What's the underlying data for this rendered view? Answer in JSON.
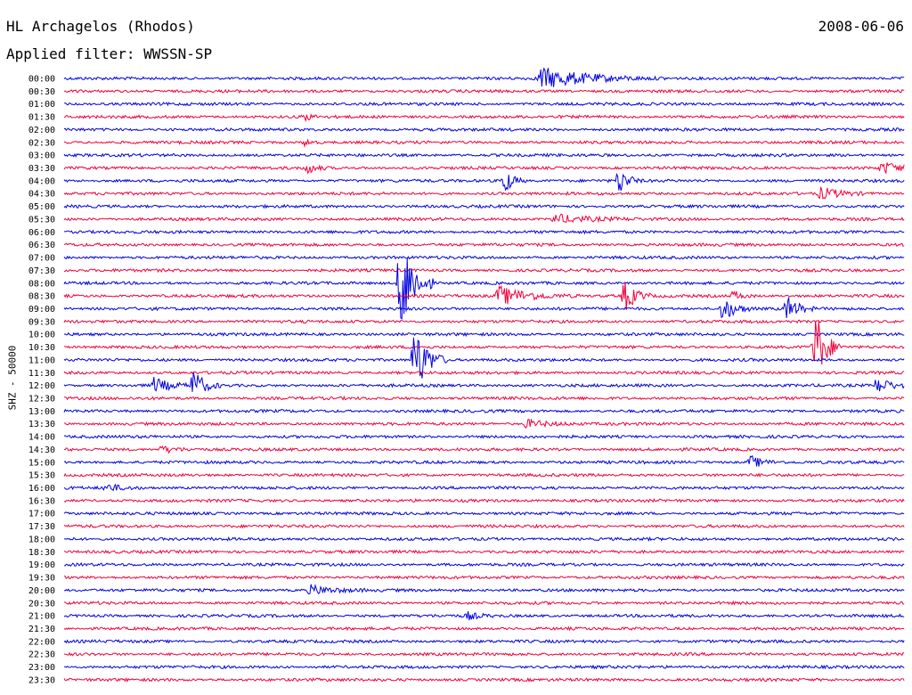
{
  "header": {
    "station": "HL Archagelos (Rhodos)",
    "date": "2008-06-06",
    "filter_line": "Applied filter: WWSSN-SP"
  },
  "chart_data": {
    "type": "line",
    "ylabel": "SHZ - 50000",
    "colors": [
      "#0000e0",
      "#f0003c"
    ],
    "row_labels": [
      "00:00",
      "00:30",
      "01:00",
      "01:30",
      "02:00",
      "02:30",
      "03:00",
      "03:30",
      "04:00",
      "04:30",
      "05:00",
      "05:30",
      "06:00",
      "06:30",
      "07:00",
      "07:30",
      "08:00",
      "08:30",
      "09:00",
      "09:30",
      "10:00",
      "10:30",
      "11:00",
      "11:30",
      "12:00",
      "12:30",
      "13:00",
      "13:30",
      "14:00",
      "14:30",
      "15:00",
      "15:30",
      "16:00",
      "16:30",
      "17:00",
      "17:30",
      "18:00",
      "18:30",
      "19:00",
      "19:30",
      "20:00",
      "20:30",
      "21:00",
      "21:30",
      "22:00",
      "22:30",
      "23:00",
      "23:30"
    ],
    "events": [
      {
        "row": 0,
        "minute": 17.0,
        "amplitude": 1.0,
        "duration": 4.5
      },
      {
        "row": 3,
        "minute": 8.6,
        "amplitude": 0.35,
        "duration": 0.6
      },
      {
        "row": 5,
        "minute": 8.6,
        "amplitude": 0.35,
        "duration": 0.6
      },
      {
        "row": 7,
        "minute": 8.7,
        "amplitude": 0.5,
        "duration": 0.8
      },
      {
        "row": 7,
        "minute": 29.2,
        "amplitude": 0.55,
        "duration": 2.0
      },
      {
        "row": 8,
        "minute": 15.7,
        "amplitude": 1.3,
        "duration": 0.8
      },
      {
        "row": 8,
        "minute": 19.8,
        "amplitude": 1.3,
        "duration": 0.8
      },
      {
        "row": 9,
        "minute": 27.0,
        "amplitude": 0.55,
        "duration": 2.0
      },
      {
        "row": 11,
        "minute": 17.5,
        "amplitude": 0.45,
        "duration": 3.0
      },
      {
        "row": 16,
        "minute": 12.0,
        "amplitude": 5.5,
        "duration": 1.2
      },
      {
        "row": 17,
        "minute": 15.5,
        "amplitude": 0.9,
        "duration": 3.0
      },
      {
        "row": 17,
        "minute": 20.0,
        "amplitude": 1.5,
        "duration": 1.0
      },
      {
        "row": 17,
        "minute": 23.9,
        "amplitude": 0.5,
        "duration": 0.8
      },
      {
        "row": 18,
        "minute": 23.5,
        "amplitude": 1.2,
        "duration": 1.2
      },
      {
        "row": 18,
        "minute": 25.8,
        "amplitude": 1.2,
        "duration": 1.0
      },
      {
        "row": 21,
        "minute": 26.8,
        "amplitude": 3.5,
        "duration": 1.0
      },
      {
        "row": 22,
        "minute": 12.5,
        "amplitude": 3.5,
        "duration": 1.2
      },
      {
        "row": 24,
        "minute": 3.2,
        "amplitude": 0.7,
        "duration": 1.5
      },
      {
        "row": 24,
        "minute": 4.6,
        "amplitude": 1.5,
        "duration": 1.0
      },
      {
        "row": 24,
        "minute": 29.0,
        "amplitude": 0.7,
        "duration": 1.5
      },
      {
        "row": 27,
        "minute": 16.5,
        "amplitude": 0.4,
        "duration": 2.0
      },
      {
        "row": 29,
        "minute": 3.5,
        "amplitude": 0.35,
        "duration": 1.5
      },
      {
        "row": 30,
        "minute": 24.5,
        "amplitude": 0.6,
        "duration": 1.2
      },
      {
        "row": 32,
        "minute": 1.5,
        "amplitude": 0.35,
        "duration": 1.5
      },
      {
        "row": 40,
        "minute": 8.8,
        "amplitude": 0.45,
        "duration": 2.0
      },
      {
        "row": 42,
        "minute": 14.4,
        "amplitude": 0.35,
        "duration": 1.0
      }
    ]
  }
}
